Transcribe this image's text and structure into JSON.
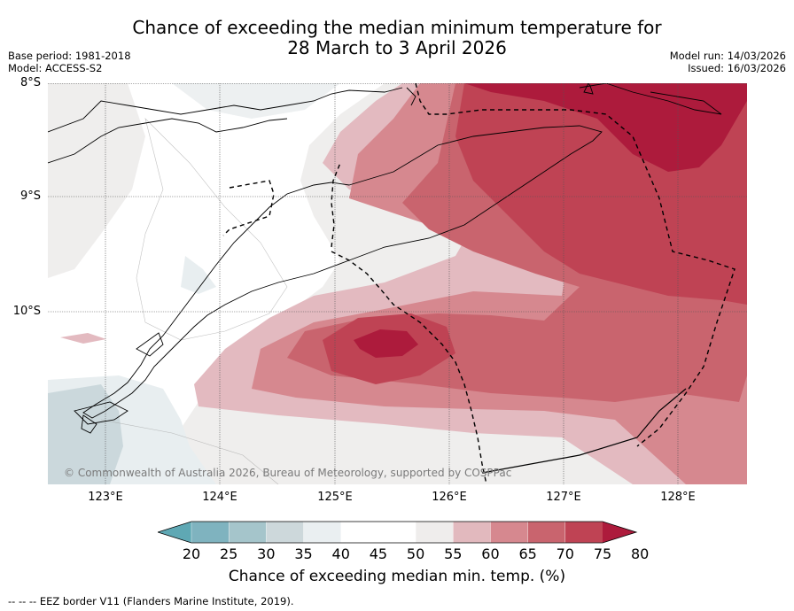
{
  "header": {
    "title_line1": "Chance of exceeding the median minimum temperature for",
    "title_line2": "28 March to 3 April 2026",
    "base_period": "Base period: 1981-2018",
    "model": "Model: ACCESS-S2",
    "model_run": "Model run: 14/03/2026",
    "issued": "Issued: 16/03/2026"
  },
  "map": {
    "lat_labels": [
      "8°S",
      "9°S",
      "10°S"
    ],
    "lon_labels": [
      "123°E",
      "124°E",
      "125°E",
      "126°E",
      "127°E",
      "128°E"
    ],
    "copyright": "© Commonwealth of Australia 2026, Bureau of Meteorology, supported by COSPPac"
  },
  "colorbar": {
    "ticks": [
      "20",
      "25",
      "30",
      "35",
      "40",
      "45",
      "50",
      "55",
      "60",
      "65",
      "70",
      "75",
      "80"
    ],
    "label": "Chance of exceeding median min. temp. (%)",
    "colors": [
      "#5fa8b4",
      "#7fb3bf",
      "#a5c5cb",
      "#cdd8db",
      "#eaeff1",
      "#ffffff",
      "#ffffff",
      "#efedec",
      "#e2b9be",
      "#d6888f",
      "#c9646e",
      "#bf4354",
      "#ad1b3c"
    ]
  },
  "footer": {
    "legend_text": "--  --  -- EEZ border V11 (Flanders Marine Institute, 2019)."
  }
}
